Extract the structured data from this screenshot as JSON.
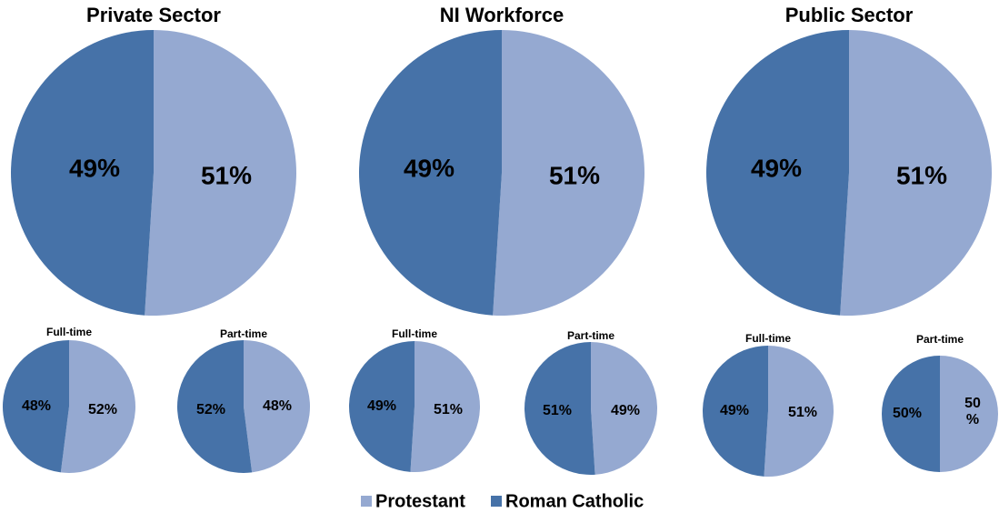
{
  "chart_data": [
    {
      "type": "pie",
      "title": "Private Sector",
      "categories": [
        "Protestant",
        "Roman Catholic"
      ],
      "values": [
        51,
        49
      ],
      "colors": [
        "#95a9d1",
        "#4672a8"
      ]
    },
    {
      "type": "pie",
      "title": "NI Workforce",
      "categories": [
        "Protestant",
        "Roman Catholic"
      ],
      "values": [
        51,
        49
      ],
      "colors": [
        "#95a9d1",
        "#4672a8"
      ]
    },
    {
      "type": "pie",
      "title": "Public Sector",
      "categories": [
        "Protestant",
        "Roman Catholic"
      ],
      "values": [
        51,
        49
      ],
      "colors": [
        "#95a9d1",
        "#4672a8"
      ]
    },
    {
      "type": "pie",
      "title": "Full-time",
      "categories": [
        "Protestant",
        "Roman Catholic"
      ],
      "values": [
        52,
        48
      ],
      "colors": [
        "#95a9d1",
        "#4672a8"
      ]
    },
    {
      "type": "pie",
      "title": "Part-time",
      "categories": [
        "Protestant",
        "Roman Catholic"
      ],
      "values": [
        48,
        52
      ],
      "colors": [
        "#95a9d1",
        "#4672a8"
      ]
    },
    {
      "type": "pie",
      "title": "Full-time",
      "categories": [
        "Protestant",
        "Roman Catholic"
      ],
      "values": [
        51,
        49
      ],
      "colors": [
        "#95a9d1",
        "#4672a8"
      ]
    },
    {
      "type": "pie",
      "title": "Part-time",
      "categories": [
        "Protestant",
        "Roman Catholic"
      ],
      "values": [
        49,
        51
      ],
      "colors": [
        "#95a9d1",
        "#4672a8"
      ]
    },
    {
      "type": "pie",
      "title": "Full-time",
      "categories": [
        "Protestant",
        "Roman Catholic"
      ],
      "values": [
        51,
        49
      ],
      "colors": [
        "#95a9d1",
        "#4672a8"
      ]
    },
    {
      "type": "pie",
      "title": "Part-time",
      "categories": [
        "Protestant",
        "Roman Catholic"
      ],
      "values": [
        50,
        50
      ],
      "value_labels": [
        "50\n%",
        "50%"
      ],
      "colors": [
        "#95a9d1",
        "#4672a8"
      ]
    }
  ]
}
